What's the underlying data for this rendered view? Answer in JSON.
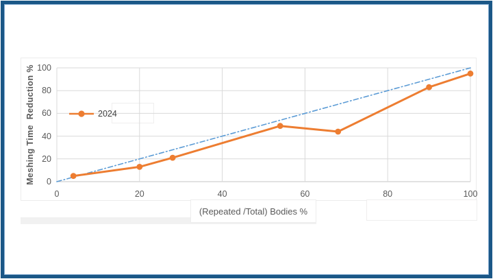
{
  "window": {
    "background": "#ffffff",
    "frame_color": "#1b5787",
    "frame_inner_color": "#86aed3"
  },
  "chart_data": {
    "type": "line",
    "title": "",
    "xlabel": "(Repeated /Total) Bodies %",
    "ylabel": "Meshing Time  Reduction %",
    "xlim": [
      0,
      100
    ],
    "ylim": [
      0,
      100
    ],
    "x_ticks": [
      0,
      20,
      40,
      60,
      80,
      100
    ],
    "y_ticks": [
      0,
      20,
      40,
      60,
      80,
      100
    ],
    "grid": true,
    "legend": {
      "position": "inside-upper-left",
      "entries": [
        "2024"
      ]
    },
    "series": [
      {
        "name": "2024",
        "color": "#ED7D31",
        "marker": "circle",
        "line_style": "solid",
        "line_width": 3,
        "in_legend": true,
        "points": [
          [
            4,
            5
          ],
          [
            20,
            13
          ],
          [
            28,
            21
          ],
          [
            54,
            49
          ],
          [
            68,
            44
          ],
          [
            90,
            83
          ],
          [
            100,
            95
          ]
        ]
      },
      {
        "name": "reference-line",
        "color": "#5B9BD5",
        "marker": "none",
        "line_style": "dash-dot",
        "line_width": 1.6,
        "in_legend": false,
        "points": [
          [
            0,
            0
          ],
          [
            100,
            100
          ]
        ]
      }
    ],
    "colors": {
      "grid": "#d9d9d9",
      "axis_line": "#c6c6c6",
      "tick_text": "#595959",
      "axis_title_text": "#595959"
    }
  }
}
